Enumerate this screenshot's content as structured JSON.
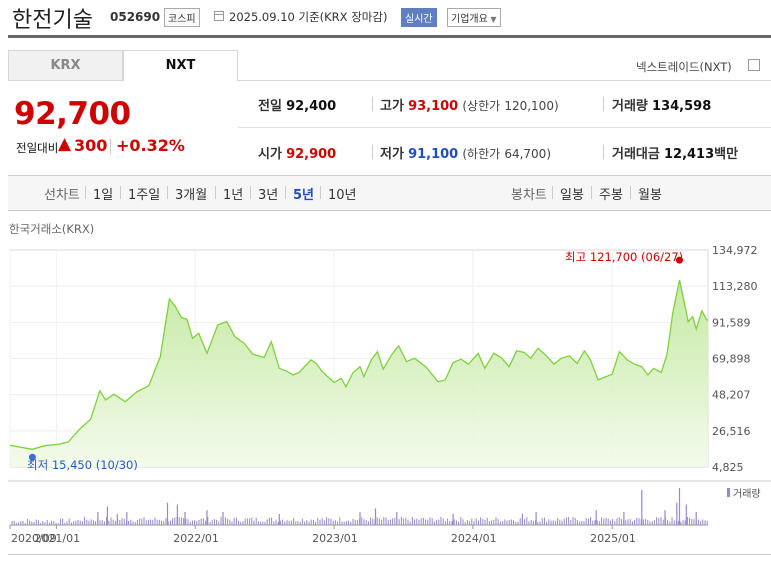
{
  "header": {
    "company": "한전기술",
    "code": "052690",
    "market": "코스피",
    "date": "2025.09.10  기준(KRX 장마감)",
    "realtime": "실시간",
    "overview": "기업개요"
  },
  "tabs": {
    "krx": "KRX",
    "nxt": "NXT"
  },
  "nxt_toggle": "넥스트레이드(NXT)",
  "price": {
    "current": "92,700",
    "change_label": "전일대비",
    "arrow": "▲",
    "change": "300",
    "change_pct": "+0.32%"
  },
  "stats": {
    "prev_close_label": "전일",
    "prev_close": "92,400",
    "high_label": "고가",
    "high": "93,100",
    "upper_limit_label": "(상한가",
    "upper_limit": "120,100)",
    "volume_label": "거래량",
    "volume": "134,598",
    "open_label": "시가",
    "open": "92,900",
    "low_label": "저가",
    "low": "91,100",
    "lower_limit_label": "(하한가",
    "lower_limit": "64,700)",
    "amount_label": "거래대금",
    "amount": "12,413",
    "amount_unit": "백만"
  },
  "period": {
    "label": "선차트",
    "items": [
      "1일",
      "1주일",
      "3개월",
      "1년",
      "3년",
      "5년",
      "10년"
    ],
    "active": "5년"
  },
  "candle": {
    "label": "봉차트",
    "items": [
      "일봉",
      "주봉",
      "월봉"
    ]
  },
  "colors": {
    "up": "#d00000",
    "down": "#1f4ebf",
    "line": "#7fd13b",
    "volume": "#9a86c9"
  },
  "chart_data": {
    "type": "area",
    "subtitle": "한국거래소(KRX)",
    "xlabel": "",
    "ylabel": "",
    "ylim": [
      4825,
      134972
    ],
    "y_ticks": [
      "134,972",
      "113,280",
      "91,589",
      "69,898",
      "48,207",
      "26,516",
      "4,825"
    ],
    "y_tick_values": [
      134972,
      113280,
      91589,
      69898,
      48207,
      26516,
      4825
    ],
    "x_ticks": [
      "2020/09",
      "2021/01",
      "2022/01",
      "2023/01",
      "2024/01",
      "2025/01"
    ],
    "x_tick_values": [
      "2020-09-01",
      "2021-01-01",
      "2022-01-01",
      "2023-01-01",
      "2024-01-01",
      "2025-01-01"
    ],
    "x_range": [
      "2020-09-01",
      "2025-09-10"
    ],
    "max_label": "최고 121,700 (06/27)",
    "min_label": "최저 15,450 (10/30)",
    "max_point": {
      "date": "2025-06-27",
      "value": 121700
    },
    "min_point": {
      "date": "2020-10-30",
      "value": 15450
    },
    "volume_legend": "거래량",
    "series": [
      {
        "values": [
          [
            "2020-09-01",
            17800
          ],
          [
            "2020-10-30",
            15450
          ],
          [
            "2020-12-01",
            17600
          ],
          [
            "2021-01-05",
            18400
          ],
          [
            "2021-02-01",
            19800
          ],
          [
            "2021-03-01",
            27000
          ],
          [
            "2021-04-01",
            33500
          ],
          [
            "2021-04-25",
            50500
          ],
          [
            "2021-05-10",
            45000
          ],
          [
            "2021-06-01",
            48500
          ],
          [
            "2021-07-01",
            44000
          ],
          [
            "2021-08-01",
            50000
          ],
          [
            "2021-09-01",
            53500
          ],
          [
            "2021-10-01",
            71000
          ],
          [
            "2021-10-25",
            105500
          ],
          [
            "2021-11-10",
            101000
          ],
          [
            "2021-11-25",
            94500
          ],
          [
            "2021-12-10",
            93500
          ],
          [
            "2021-12-25",
            82000
          ],
          [
            "2022-01-10",
            85000
          ],
          [
            "2022-02-01",
            73000
          ],
          [
            "2022-03-01",
            90000
          ],
          [
            "2022-03-25",
            92000
          ],
          [
            "2022-04-15",
            83000
          ],
          [
            "2022-05-10",
            79000
          ],
          [
            "2022-06-01",
            72500
          ],
          [
            "2022-07-01",
            70500
          ],
          [
            "2022-07-20",
            80000
          ],
          [
            "2022-08-10",
            64000
          ],
          [
            "2022-09-01",
            62000
          ],
          [
            "2022-09-15",
            60000
          ],
          [
            "2022-10-01",
            61500
          ],
          [
            "2022-11-01",
            69000
          ],
          [
            "2022-11-15",
            67000
          ],
          [
            "2022-12-01",
            62000
          ],
          [
            "2023-01-01",
            55500
          ],
          [
            "2023-01-20",
            58000
          ],
          [
            "2023-02-01",
            53000
          ],
          [
            "2023-02-20",
            61500
          ],
          [
            "2023-03-10",
            65000
          ],
          [
            "2023-03-20",
            59000
          ],
          [
            "2023-04-10",
            69500
          ],
          [
            "2023-04-25",
            74000
          ],
          [
            "2023-05-10",
            63500
          ],
          [
            "2023-06-01",
            72000
          ],
          [
            "2023-06-20",
            77500
          ],
          [
            "2023-07-10",
            68000
          ],
          [
            "2023-08-01",
            70000
          ],
          [
            "2023-09-01",
            64500
          ],
          [
            "2023-10-01",
            56000
          ],
          [
            "2023-10-20",
            57000
          ],
          [
            "2023-11-10",
            67500
          ],
          [
            "2023-12-01",
            69500
          ],
          [
            "2023-12-20",
            66500
          ],
          [
            "2024-01-15",
            73000
          ],
          [
            "2024-02-01",
            64000
          ],
          [
            "2024-02-25",
            73000
          ],
          [
            "2024-03-15",
            70500
          ],
          [
            "2024-04-05",
            65000
          ],
          [
            "2024-04-25",
            74500
          ],
          [
            "2024-05-15",
            73500
          ],
          [
            "2024-06-01",
            70000
          ],
          [
            "2024-06-20",
            76000
          ],
          [
            "2024-07-10",
            72000
          ],
          [
            "2024-08-01",
            66500
          ],
          [
            "2024-08-20",
            70000
          ],
          [
            "2024-09-10",
            71500
          ],
          [
            "2024-10-01",
            67000
          ],
          [
            "2024-10-20",
            74500
          ],
          [
            "2024-11-05",
            69000
          ],
          [
            "2024-11-25",
            57000
          ],
          [
            "2024-12-10",
            58500
          ],
          [
            "2025-01-01",
            60500
          ],
          [
            "2025-01-20",
            74000
          ],
          [
            "2025-02-10",
            69000
          ],
          [
            "2025-03-01",
            66500
          ],
          [
            "2025-03-20",
            65000
          ],
          [
            "2025-04-05",
            60000
          ],
          [
            "2025-04-20",
            64000
          ],
          [
            "2025-05-10",
            61500
          ],
          [
            "2025-05-25",
            72000
          ],
          [
            "2025-06-10",
            98000
          ],
          [
            "2025-06-27",
            117000
          ],
          [
            "2025-07-10",
            103000
          ],
          [
            "2025-07-20",
            92000
          ],
          [
            "2025-08-01",
            95000
          ],
          [
            "2025-08-10",
            87500
          ],
          [
            "2025-08-25",
            98500
          ],
          [
            "2025-09-05",
            93500
          ],
          [
            "2025-09-10",
            92700
          ]
        ]
      }
    ],
    "volume_spikes": [
      [
        "2021-04-20",
        0.35
      ],
      [
        "2021-05-15",
        0.5
      ],
      [
        "2021-06-10",
        0.3
      ],
      [
        "2021-07-05",
        0.35
      ],
      [
        "2021-10-20",
        0.6
      ],
      [
        "2021-11-15",
        0.55
      ],
      [
        "2021-12-05",
        0.35
      ],
      [
        "2022-02-01",
        0.4
      ],
      [
        "2022-03-15",
        0.35
      ],
      [
        "2022-08-10",
        0.3
      ],
      [
        "2023-03-10",
        0.35
      ],
      [
        "2023-04-20",
        0.45
      ],
      [
        "2023-06-15",
        0.35
      ],
      [
        "2023-11-10",
        0.3
      ],
      [
        "2024-05-10",
        0.3
      ],
      [
        "2024-06-15",
        0.35
      ],
      [
        "2024-11-20",
        0.4
      ],
      [
        "2025-02-01",
        0.35
      ],
      [
        "2025-03-20",
        0.95
      ],
      [
        "2025-05-20",
        0.4
      ],
      [
        "2025-06-20",
        0.6
      ],
      [
        "2025-06-27",
        1.0
      ],
      [
        "2025-07-15",
        0.55
      ],
      [
        "2025-08-10",
        0.35
      ]
    ]
  }
}
